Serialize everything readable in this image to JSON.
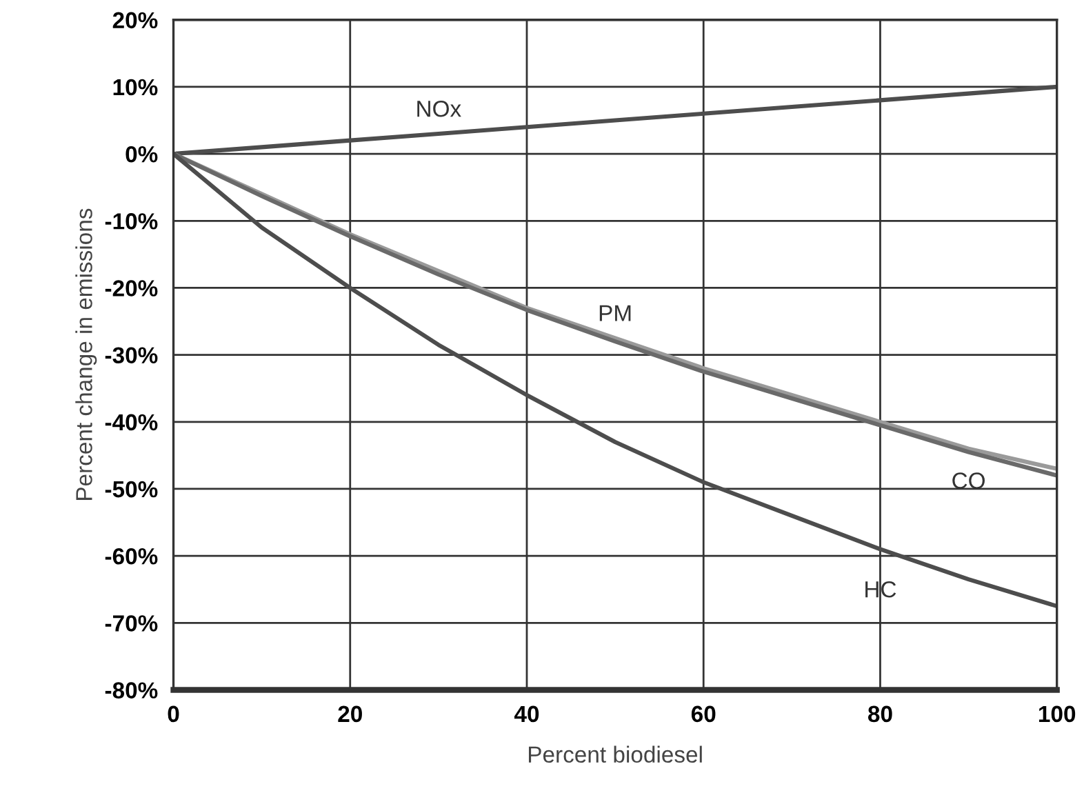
{
  "chart_data": {
    "type": "line",
    "xlabel": "Percent biodiesel",
    "ylabel": "Percent change in emissions",
    "x": [
      0,
      10,
      20,
      30,
      40,
      50,
      60,
      70,
      80,
      90,
      100
    ],
    "series": [
      {
        "name": "NOx",
        "color": "#4d4d4d",
        "values": [
          0,
          1,
          2,
          3,
          4,
          5,
          6,
          7,
          8,
          9,
          10
        ]
      },
      {
        "name": "PM",
        "color": "#9a9a9a",
        "values": [
          0,
          -6,
          -12,
          -17.5,
          -23,
          -27.5,
          -32,
          -36,
          -40,
          -44,
          -47
        ]
      },
      {
        "name": "CO",
        "color": "#6a6a6a",
        "values": [
          0,
          -6.3,
          -12.3,
          -18,
          -23.3,
          -28,
          -32.5,
          -36.5,
          -40.5,
          -44.5,
          -48
        ]
      },
      {
        "name": "HC",
        "color": "#4d4d4d",
        "values": [
          0,
          -11,
          -20,
          -28.5,
          -36,
          -43,
          -49,
          -54,
          -59,
          -63.5,
          -67.5
        ]
      }
    ],
    "xlim": [
      0,
      100
    ],
    "xticks": [
      0,
      20,
      40,
      60,
      80,
      100
    ],
    "ylim": [
      -80,
      20
    ],
    "yticks": [
      {
        "value": 20,
        "label": "20%"
      },
      {
        "value": 10,
        "label": "10%"
      },
      {
        "value": 0,
        "label": "0%"
      },
      {
        "value": -10,
        "label": "-10%"
      },
      {
        "value": -20,
        "label": "-20%"
      },
      {
        "value": -30,
        "label": "-30%"
      },
      {
        "value": -40,
        "label": "-40%"
      },
      {
        "value": -50,
        "label": "-50%"
      },
      {
        "value": -60,
        "label": "-60%"
      },
      {
        "value": -70,
        "label": "-70%"
      },
      {
        "value": -80,
        "label": "-80%"
      }
    ],
    "grid": true,
    "legend": false,
    "marker": "none",
    "line_style": "solid"
  }
}
